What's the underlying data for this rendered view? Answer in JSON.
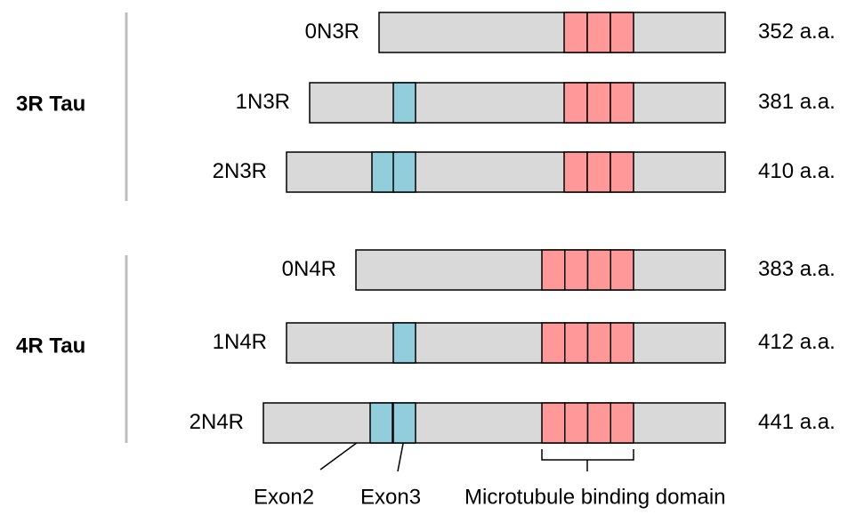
{
  "groups": [
    {
      "label": "3R Tau",
      "isoforms": [
        {
          "name": "0N3R",
          "length": "352 a.a."
        },
        {
          "name": "1N3R",
          "length": "381 a.a."
        },
        {
          "name": "2N3R",
          "length": "410 a.a."
        }
      ]
    },
    {
      "label": "4R Tau",
      "isoforms": [
        {
          "name": "0N4R",
          "length": "383 a.a."
        },
        {
          "name": "1N4R",
          "length": "412 a.a."
        },
        {
          "name": "2N4R",
          "length": "441 a.a."
        }
      ]
    }
  ],
  "annotations": {
    "exon2": "Exon2",
    "exon3": "Exon3",
    "mtbd": "Microtubule binding domain"
  }
}
